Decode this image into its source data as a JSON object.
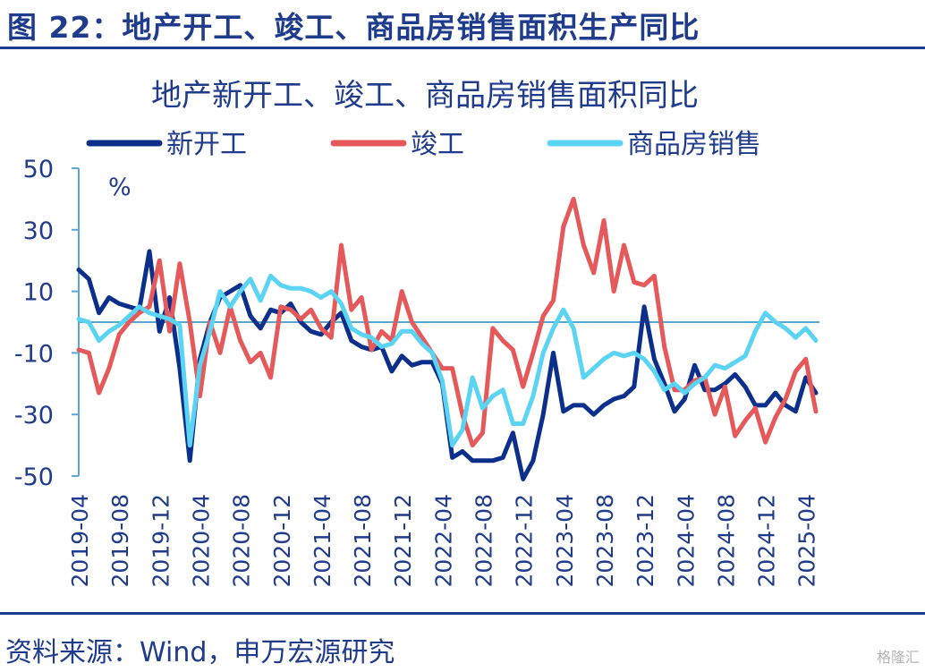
{
  "figure_title": "图 22：地产开工、竣工、商品房销售面积生产同比",
  "source": "资料来源：Wind，申万宏源研究",
  "watermark": "格隆汇",
  "chart_data": {
    "type": "line",
    "title": "地产新开工、竣工、商品房销售面积同比",
    "ylabel": "%",
    "ylim": [
      -50,
      50
    ],
    "yticks": [
      50,
      30,
      10,
      -10,
      -30,
      -50
    ],
    "x_tick_labels": [
      "2019-04",
      "2019-08",
      "2019-12",
      "2020-04",
      "2020-08",
      "2020-12",
      "2021-04",
      "2021-08",
      "2021-12",
      "2022-04",
      "2022-08",
      "2022-12",
      "2023-04",
      "2023-08",
      "2023-12",
      "2024-04",
      "2024-08",
      "2024-12",
      "2025-04"
    ],
    "legend_position": "top",
    "x": [
      "2019-04",
      "2019-05",
      "2019-06",
      "2019-07",
      "2019-08",
      "2019-09",
      "2019-10",
      "2019-11",
      "2019-12",
      "2020-01",
      "2020-02",
      "2020-03",
      "2020-04",
      "2020-05",
      "2020-06",
      "2020-07",
      "2020-08",
      "2020-09",
      "2020-10",
      "2020-11",
      "2020-12",
      "2021-01",
      "2021-02",
      "2021-03",
      "2021-04",
      "2021-05",
      "2021-06",
      "2021-07",
      "2021-08",
      "2021-09",
      "2021-10",
      "2021-11",
      "2021-12",
      "2022-01",
      "2022-02",
      "2022-03",
      "2022-04",
      "2022-05",
      "2022-06",
      "2022-07",
      "2022-08",
      "2022-09",
      "2022-10",
      "2022-11",
      "2022-12",
      "2023-01",
      "2023-02",
      "2023-03",
      "2023-04",
      "2023-05",
      "2023-06",
      "2023-07",
      "2023-08",
      "2023-09",
      "2023-10",
      "2023-11",
      "2023-12",
      "2024-01",
      "2024-02",
      "2024-03",
      "2024-04",
      "2024-05",
      "2024-06",
      "2024-07",
      "2024-08",
      "2024-09",
      "2024-10",
      "2024-11",
      "2024-12",
      "2025-01",
      "2025-02",
      "2025-03",
      "2025-04",
      "2025-05"
    ],
    "series": [
      {
        "name": "新开工",
        "color": "#0b2f8a",
        "values": [
          17,
          14,
          3,
          8,
          6,
          5,
          4,
          23,
          -3,
          8,
          -15,
          -45,
          -12,
          0,
          8,
          10,
          12,
          2,
          -2,
          4,
          3,
          6,
          0,
          -3,
          -4,
          0,
          3,
          -6,
          -8,
          -9,
          -8,
          -16,
          -11,
          -14,
          -13,
          -13,
          -20,
          -44,
          -42,
          -45,
          -45,
          -45,
          -44,
          -36,
          -51,
          -45,
          -30,
          -10,
          -29,
          -27,
          -27,
          -30,
          -27,
          -25,
          -24,
          -21,
          5,
          -12,
          -20,
          -29,
          -25,
          -14,
          -22,
          -22,
          -20,
          -17,
          -21,
          -27,
          -27,
          -23,
          -27,
          -29,
          -18,
          -23
        ]
      },
      {
        "name": "竣工",
        "color": "#e5595b",
        "values": [
          -9,
          -10,
          -23,
          -15,
          -4,
          0,
          3,
          5,
          20,
          -3,
          19,
          0,
          -24,
          0,
          -10,
          5,
          -6,
          -13,
          -10,
          -18,
          5,
          4,
          1,
          4,
          -2,
          -5,
          25,
          4,
          8,
          -9,
          -3,
          -6,
          10,
          0,
          -5,
          -10,
          -15,
          -15,
          -30,
          -40,
          -36,
          -2,
          -6,
          -9,
          -21,
          -10,
          2,
          7,
          31,
          40,
          25,
          16,
          33,
          10,
          25,
          13,
          12,
          15,
          -8,
          -22,
          -22,
          -19,
          -18,
          -30,
          -21,
          -37,
          -32,
          -28,
          -39,
          -31,
          -25,
          -16,
          -12,
          -29
        ]
      },
      {
        "name": "商品房销售",
        "color": "#5bd3f3",
        "values": [
          1,
          0,
          -6,
          -3,
          -1,
          2,
          5,
          3,
          2,
          1,
          -1,
          -40,
          -14,
          -3,
          10,
          5,
          10,
          14,
          7,
          15,
          12,
          11,
          11,
          10,
          8,
          10,
          6,
          -2,
          -4,
          -5,
          -8,
          -7,
          -3,
          -3,
          -7,
          -10,
          -19,
          -40,
          -35,
          -18,
          -28,
          -24,
          -22,
          -33,
          -33,
          -24,
          -10,
          -2,
          4,
          -2,
          -18,
          -15,
          -12,
          -10,
          -11,
          -10,
          -12,
          -16,
          -22,
          -20,
          -23,
          -20,
          -18,
          -14,
          -15,
          -13,
          -11,
          -3,
          3,
          0,
          -2,
          -5,
          -2,
          -6
        ]
      }
    ]
  }
}
